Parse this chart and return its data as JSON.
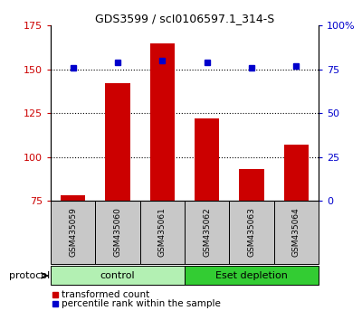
{
  "title": "GDS3599 / scI0106597.1_314-S",
  "samples": [
    "GSM435059",
    "GSM435060",
    "GSM435061",
    "GSM435062",
    "GSM435063",
    "GSM435064"
  ],
  "transformed_count": [
    78,
    142,
    165,
    122,
    93,
    107
  ],
  "percentile_rank": [
    76,
    79,
    80,
    79,
    76,
    77
  ],
  "ylim_left": [
    75,
    175
  ],
  "ylim_right": [
    0,
    100
  ],
  "yticks_left": [
    75,
    100,
    125,
    150,
    175
  ],
  "yticks_right": [
    0,
    25,
    50,
    75,
    100
  ],
  "yticklabels_right": [
    "0",
    "25",
    "50",
    "75",
    "100%"
  ],
  "grid_lines": [
    100,
    125,
    150
  ],
  "bar_color": "#cc0000",
  "dot_color": "#0000cc",
  "bar_bottom": 75,
  "groups": [
    {
      "label": "control",
      "indices": [
        0,
        1,
        2
      ],
      "color": "#b3f0b3"
    },
    {
      "label": "Eset depletion",
      "indices": [
        3,
        4,
        5
      ],
      "color": "#33cc33"
    }
  ],
  "legend_items": [
    {
      "label": "transformed count",
      "color": "#cc0000"
    },
    {
      "label": "percentile rank within the sample",
      "color": "#0000cc"
    }
  ],
  "protocol_label": "protocol",
  "tick_color_left": "#cc0000",
  "tick_color_right": "#0000cc",
  "bg_xtick": "#c8c8c8",
  "bg_plot": "#ffffff"
}
